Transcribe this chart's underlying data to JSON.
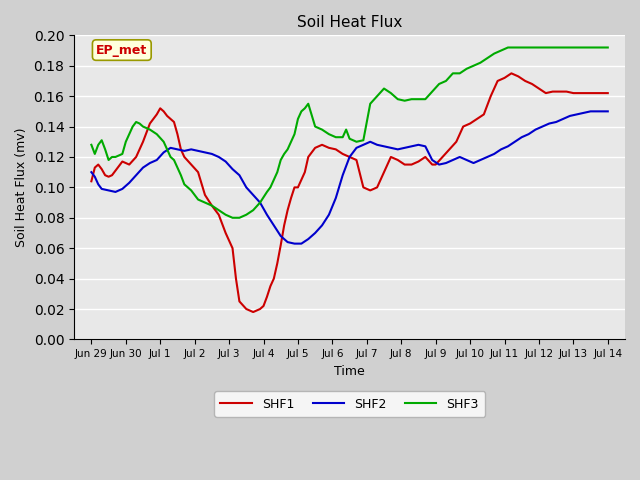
{
  "title": "Soil Heat Flux",
  "xlabel": "Time",
  "ylabel": "Soil Heat Flux (mv)",
  "ylim": [
    0.0,
    0.2
  ],
  "yticks": [
    0.0,
    0.02,
    0.04,
    0.06,
    0.08,
    0.1,
    0.12,
    0.14,
    0.16,
    0.18,
    0.2
  ],
  "bg_color": "#e8e8e8",
  "grid_color": "#ffffff",
  "annotation_text": "EP_met",
  "annotation_color": "#cc0000",
  "annotation_bg": "#ffffdd",
  "legend_labels": [
    "SHF1",
    "SHF2",
    "SHF3"
  ],
  "line_colors": [
    "#cc0000",
    "#0000cc",
    "#00aa00"
  ],
  "xlim": [
    0.5,
    16.5
  ],
  "xtick_positions": [
    1,
    2,
    3,
    4,
    5,
    6,
    7,
    8,
    9,
    10,
    11,
    12,
    13,
    14,
    15,
    16
  ],
  "xtick_labels": [
    "Jun 29",
    "Jun 30",
    "Jul 1",
    "Jul 2",
    "Jul 3",
    "Jul 4",
    "Jul 5",
    "Jul 6",
    "Jul 7",
    "Jul 8",
    "Jul 9",
    "Jul 10",
    "Jul 11",
    "Jul 12",
    "Jul 13",
    "Jul 14"
  ],
  "shf1_x": [
    1.0,
    1.1,
    1.2,
    1.3,
    1.4,
    1.5,
    1.6,
    1.7,
    1.8,
    1.9,
    2.0,
    2.1,
    2.3,
    2.5,
    2.7,
    2.9,
    3.0,
    3.1,
    3.2,
    3.3,
    3.4,
    3.5,
    3.6,
    3.7,
    3.9,
    4.1,
    4.3,
    4.5,
    4.7,
    4.9,
    5.1,
    5.2,
    5.3,
    5.5,
    5.7,
    5.9,
    6.0,
    6.1,
    6.2,
    6.3,
    6.4,
    6.5,
    6.6,
    6.7,
    6.8,
    6.9,
    7.0,
    7.1,
    7.2,
    7.3,
    7.5,
    7.7,
    7.9,
    8.1,
    8.3,
    8.5,
    8.7,
    8.9,
    9.1,
    9.3,
    9.5,
    9.7,
    9.9,
    10.1,
    10.2,
    10.3,
    10.5,
    10.7,
    10.9,
    11.0,
    11.2,
    11.4,
    11.6,
    11.8,
    12.0,
    12.2,
    12.4,
    12.6,
    12.8,
    13.0,
    13.2,
    13.4,
    13.6,
    13.8,
    14.0,
    14.2,
    14.4,
    14.6,
    14.8,
    15.0,
    15.2,
    15.4,
    15.6,
    15.8,
    16.0
  ],
  "shf1_y": [
    0.104,
    0.113,
    0.115,
    0.112,
    0.108,
    0.107,
    0.108,
    0.111,
    0.114,
    0.117,
    0.116,
    0.115,
    0.12,
    0.13,
    0.142,
    0.148,
    0.152,
    0.15,
    0.147,
    0.145,
    0.143,
    0.135,
    0.125,
    0.12,
    0.115,
    0.11,
    0.095,
    0.088,
    0.082,
    0.07,
    0.06,
    0.04,
    0.025,
    0.02,
    0.018,
    0.02,
    0.022,
    0.028,
    0.035,
    0.04,
    0.05,
    0.062,
    0.075,
    0.085,
    0.093,
    0.1,
    0.1,
    0.105,
    0.11,
    0.12,
    0.126,
    0.128,
    0.126,
    0.125,
    0.122,
    0.12,
    0.118,
    0.1,
    0.098,
    0.1,
    0.11,
    0.12,
    0.118,
    0.115,
    0.115,
    0.115,
    0.117,
    0.12,
    0.115,
    0.115,
    0.12,
    0.125,
    0.13,
    0.14,
    0.142,
    0.145,
    0.148,
    0.16,
    0.17,
    0.172,
    0.175,
    0.173,
    0.17,
    0.168,
    0.165,
    0.162,
    0.163,
    0.163,
    0.163,
    0.162,
    0.162,
    0.162,
    0.162,
    0.162,
    0.162
  ],
  "shf2_x": [
    1.0,
    1.1,
    1.2,
    1.3,
    1.5,
    1.7,
    1.9,
    2.1,
    2.3,
    2.5,
    2.7,
    2.9,
    3.1,
    3.3,
    3.5,
    3.7,
    3.9,
    4.1,
    4.3,
    4.5,
    4.7,
    4.9,
    5.1,
    5.3,
    5.5,
    5.7,
    5.9,
    6.1,
    6.3,
    6.5,
    6.7,
    6.9,
    7.1,
    7.3,
    7.5,
    7.7,
    7.9,
    8.1,
    8.3,
    8.5,
    8.7,
    8.9,
    9.1,
    9.3,
    9.5,
    9.7,
    9.9,
    10.1,
    10.3,
    10.5,
    10.7,
    10.9,
    11.1,
    11.3,
    11.5,
    11.7,
    11.9,
    12.1,
    12.3,
    12.5,
    12.7,
    12.9,
    13.1,
    13.3,
    13.5,
    13.7,
    13.9,
    14.1,
    14.3,
    14.5,
    14.7,
    14.9,
    15.1,
    15.3,
    15.5,
    15.7,
    15.9,
    16.0
  ],
  "shf2_y": [
    0.11,
    0.107,
    0.102,
    0.099,
    0.098,
    0.097,
    0.099,
    0.103,
    0.108,
    0.113,
    0.116,
    0.118,
    0.123,
    0.126,
    0.125,
    0.124,
    0.125,
    0.124,
    0.123,
    0.122,
    0.12,
    0.117,
    0.112,
    0.108,
    0.1,
    0.095,
    0.09,
    0.082,
    0.075,
    0.068,
    0.064,
    0.063,
    0.063,
    0.066,
    0.07,
    0.075,
    0.082,
    0.093,
    0.108,
    0.12,
    0.126,
    0.128,
    0.13,
    0.128,
    0.127,
    0.126,
    0.125,
    0.126,
    0.127,
    0.128,
    0.127,
    0.118,
    0.115,
    0.116,
    0.118,
    0.12,
    0.118,
    0.116,
    0.118,
    0.12,
    0.122,
    0.125,
    0.127,
    0.13,
    0.133,
    0.135,
    0.138,
    0.14,
    0.142,
    0.143,
    0.145,
    0.147,
    0.148,
    0.149,
    0.15,
    0.15,
    0.15,
    0.15
  ],
  "shf3_x": [
    1.0,
    1.1,
    1.2,
    1.3,
    1.4,
    1.5,
    1.6,
    1.7,
    1.8,
    1.9,
    2.0,
    2.1,
    2.2,
    2.3,
    2.4,
    2.5,
    2.7,
    2.9,
    3.1,
    3.2,
    3.3,
    3.4,
    3.5,
    3.6,
    3.7,
    3.8,
    3.9,
    4.1,
    4.3,
    4.5,
    4.7,
    4.9,
    5.1,
    5.3,
    5.5,
    5.7,
    5.9,
    6.1,
    6.2,
    6.3,
    6.4,
    6.5,
    6.6,
    6.7,
    6.8,
    6.9,
    7.0,
    7.1,
    7.2,
    7.3,
    7.5,
    7.7,
    7.9,
    8.1,
    8.2,
    8.3,
    8.4,
    8.5,
    8.7,
    8.9,
    9.1,
    9.3,
    9.5,
    9.7,
    9.9,
    10.1,
    10.3,
    10.5,
    10.7,
    10.9,
    11.1,
    11.3,
    11.5,
    11.7,
    11.9,
    12.1,
    12.3,
    12.5,
    12.7,
    12.9,
    13.1,
    13.3,
    13.5,
    13.7,
    13.9,
    14.1,
    14.3,
    14.5,
    14.7,
    14.9,
    15.1,
    15.3,
    15.5,
    15.7,
    15.9,
    16.0
  ],
  "shf3_y": [
    0.128,
    0.122,
    0.128,
    0.131,
    0.125,
    0.118,
    0.12,
    0.12,
    0.121,
    0.122,
    0.13,
    0.135,
    0.14,
    0.143,
    0.142,
    0.14,
    0.138,
    0.135,
    0.13,
    0.125,
    0.12,
    0.118,
    0.113,
    0.108,
    0.102,
    0.1,
    0.098,
    0.092,
    0.09,
    0.088,
    0.085,
    0.082,
    0.08,
    0.08,
    0.082,
    0.085,
    0.09,
    0.097,
    0.1,
    0.105,
    0.11,
    0.118,
    0.122,
    0.125,
    0.13,
    0.135,
    0.145,
    0.15,
    0.152,
    0.155,
    0.14,
    0.138,
    0.135,
    0.133,
    0.133,
    0.133,
    0.138,
    0.132,
    0.13,
    0.131,
    0.155,
    0.16,
    0.165,
    0.162,
    0.158,
    0.157,
    0.158,
    0.158,
    0.158,
    0.163,
    0.168,
    0.17,
    0.175,
    0.175,
    0.178,
    0.18,
    0.182,
    0.185,
    0.188,
    0.19,
    0.192,
    0.192,
    0.192,
    0.192,
    0.192,
    0.192,
    0.192,
    0.192,
    0.192,
    0.192,
    0.192,
    0.192,
    0.192,
    0.192,
    0.192,
    0.192
  ]
}
